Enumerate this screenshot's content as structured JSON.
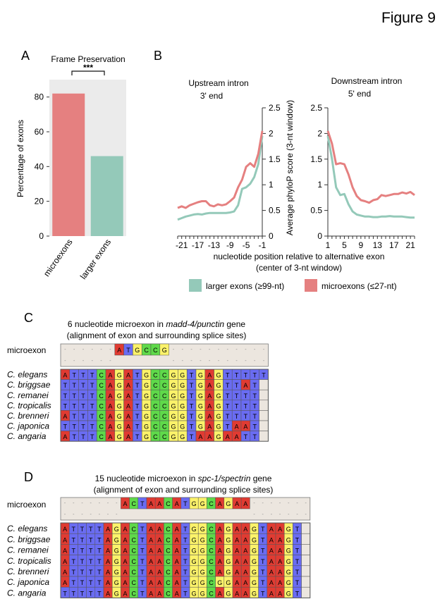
{
  "figure_title": "Figure 9",
  "colors": {
    "microexons": "#e58080",
    "larger_exons": "#94c9b9",
    "panel_bg": "#ebebeb",
    "A": "#e03b32",
    "C": "#5fd94a",
    "G": "#fbf26a",
    "T": "#6a6cf2",
    "gap": "#ece6df"
  },
  "chart_data": [
    {
      "panel": "A",
      "type": "bar",
      "title": "Frame Preservation",
      "categories": [
        "microexons",
        "larger exons"
      ],
      "values": [
        82,
        46
      ],
      "colors": [
        "#e58080",
        "#94c9b9"
      ],
      "ylabel": "Percentage of exons",
      "ylim": [
        0,
        90
      ],
      "yticks": [
        0,
        20,
        40,
        60,
        80
      ],
      "significance": "***"
    },
    {
      "panel": "B",
      "type": "line",
      "subplots": [
        {
          "title_line1": "Upstream intron",
          "title_line2": "3' end",
          "x": [
            -22,
            -21,
            -20,
            -19,
            -18,
            -17,
            -16,
            -15,
            -14,
            -13,
            -12,
            -11,
            -10,
            -9,
            -8,
            -7,
            -6,
            -5,
            -4,
            -3,
            -2,
            -1
          ],
          "xticks": [
            -21,
            -17,
            -13,
            -9,
            -5,
            -1
          ],
          "ylim": [
            0,
            2.5
          ],
          "yticks": [
            "0",
            "0.5",
            "1",
            "1.5",
            "2",
            "2.5"
          ],
          "yaxis_side": "right",
          "series": [
            {
              "key": "larger",
              "color": "#94c9b9",
              "values": [
                0.32,
                0.35,
                0.38,
                0.4,
                0.42,
                0.43,
                0.42,
                0.44,
                0.45,
                0.45,
                0.45,
                0.45,
                0.45,
                0.46,
                0.48,
                0.6,
                0.92,
                0.95,
                1.02,
                1.15,
                1.4,
                1.95
              ]
            },
            {
              "key": "micro",
              "color": "#e58080",
              "values": [
                0.55,
                0.58,
                0.55,
                0.6,
                0.63,
                0.66,
                0.68,
                0.68,
                0.6,
                0.58,
                0.62,
                0.6,
                0.62,
                0.68,
                0.75,
                0.95,
                1.1,
                1.35,
                1.42,
                1.35,
                1.6,
                2.05
              ]
            }
          ]
        },
        {
          "title_line1": "Downstream intron",
          "title_line2": "5' end",
          "x": [
            1,
            2,
            3,
            4,
            5,
            6,
            7,
            8,
            9,
            10,
            11,
            12,
            13,
            14,
            15,
            16,
            17,
            18,
            19,
            20,
            21,
            22
          ],
          "xticks": [
            1,
            5,
            9,
            13,
            17,
            21
          ],
          "ylim": [
            0,
            2.5
          ],
          "yticks": [
            "0",
            "0.5",
            "1",
            "1.5",
            "2",
            "2.5"
          ],
          "yaxis_side": "left",
          "ylabel": "Average phyloP score (3-nt window)",
          "series": [
            {
              "key": "larger",
              "color": "#94c9b9",
              "values": [
                1.95,
                1.5,
                0.95,
                0.8,
                0.82,
                0.62,
                0.48,
                0.42,
                0.4,
                0.38,
                0.38,
                0.37,
                0.37,
                0.38,
                0.38,
                0.39,
                0.38,
                0.38,
                0.38,
                0.37,
                0.36,
                0.36
              ]
            },
            {
              "key": "micro",
              "color": "#e58080",
              "values": [
                2.05,
                1.8,
                1.4,
                1.42,
                1.4,
                1.2,
                0.95,
                0.78,
                0.7,
                0.68,
                0.65,
                0.7,
                0.72,
                0.8,
                0.78,
                0.8,
                0.82,
                0.82,
                0.85,
                0.83,
                0.86,
                0.8
              ]
            }
          ]
        }
      ],
      "xlabel_line1": "nucleotide position relative to alternative exon",
      "xlabel_line2": "(center of 3-nt window)",
      "legend": [
        {
          "key": "larger",
          "label": "larger exons (≥99-nt)",
          "color": "#94c9b9"
        },
        {
          "key": "micro",
          "label": "microexons (≤27-nt)",
          "color": "#e58080"
        }
      ]
    },
    {
      "panel": "C",
      "type": "table",
      "title_line1_pre": "6 nucleotide microexon in ",
      "title_gene": "madd-4/punctin",
      "title_line1_post": " gene",
      "title_line2": "(alignment of exon and surrounding splice sites)",
      "microexon_label": "microexon",
      "microexon_row": "-----AT GCCG-------- ",
      "microexon_seq": "------ATGCCG--------",
      "species": [
        "C. elegans",
        "C. briggsae",
        "C. remanei",
        "C. tropicalis",
        "C. brenneri",
        "C. japonica",
        "C. angaria"
      ],
      "rows": [
        "ATTTCAGATGCCGGTGAGTTTTT",
        "TTTTCAGATGCCGGTGAGTTAT",
        "TTTTCAGATGCCGGTGAGTTTT",
        "TTTTCAGATGCCGGTGAGTTTT",
        "ATTTCAGATGCCGGTGAGTTTT",
        "TTTTCAGATGCCGGTGAGTAAT",
        "ATTTCAGATGCCGGTAAGAATT"
      ]
    },
    {
      "panel": "D",
      "type": "table",
      "title_line1_pre": "15 nucleotide microexon in ",
      "title_gene": "spc-1/spectrin",
      "title_line1_post": " gene",
      "title_line2": "(alignment of exon and surrounding splice sites)",
      "microexon_label": "microexon",
      "microexon_seq": "-------ACTAACATGGCAGAA-------",
      "species": [
        "C. elegans",
        "C. briggsae",
        "C. remanei",
        "C. tropicalis",
        "C. brenneri",
        "C. japonica",
        "C. angaria"
      ],
      "rows": [
        "ATTTTAGACTAACATGGCAGAAGTAAGT",
        "ATTTTAGACTAACATGGCAGAAGTAAGT",
        "ATTTTAGACTAACATGGCAGAAGTAAGT",
        "ATTTTAGACTAACATGGCAGAAGTAAGT",
        "ATTTTAGACTAACATGGCAGAAGTAAGT",
        "ATTTTAGACTAACATGGCGGAAGTAAGT",
        "TTTTTAGACTAACATGGCAGAAGTAAGT"
      ]
    }
  ],
  "panel_labels": {
    "a": "A",
    "b": "B",
    "c": "C",
    "d": "D"
  }
}
